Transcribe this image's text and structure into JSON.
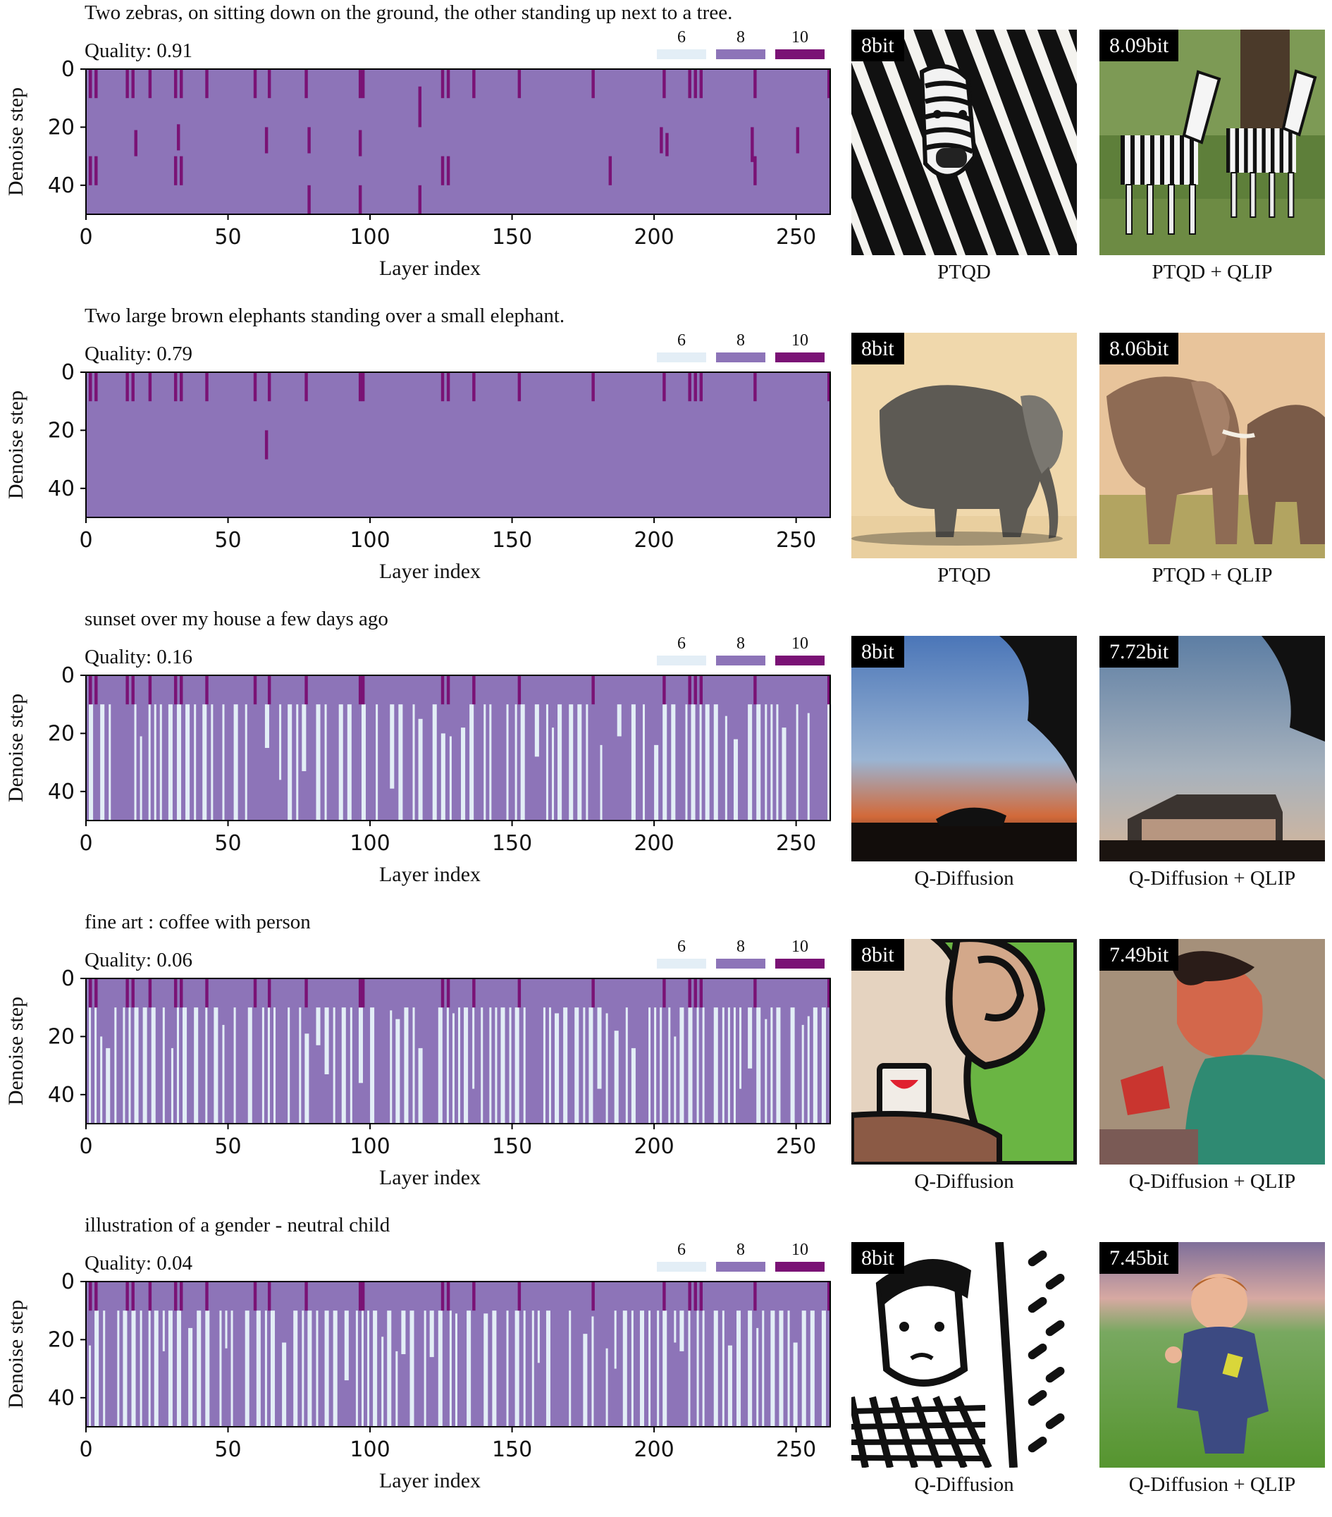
{
  "colors": {
    "bit6": "#e3eef6",
    "bit8": "#8d74b8",
    "bit10": "#7a1275"
  },
  "chart_data": [
    {
      "type": "heatmap",
      "title": "Two zebras, on sitting down on the ground, the other standing up next to a tree.",
      "quality_label": "Quality: 0.91",
      "xlabel": "Layer index",
      "ylabel": "Denoise step",
      "x_ticks": [
        "0",
        "50",
        "100",
        "150",
        "200",
        "250"
      ],
      "y_ticks": [
        "0",
        "20",
        "40"
      ],
      "xlim": [
        0,
        262
      ],
      "ylim": [
        0,
        50
      ],
      "legend": [
        "6",
        "8",
        "10"
      ],
      "base_bits": 8,
      "top_bits10_layers": [
        1,
        3,
        14,
        16,
        22,
        31,
        33,
        42,
        59,
        64,
        77,
        96,
        97,
        125,
        127,
        136,
        152,
        178,
        203,
        212,
        214,
        216,
        235,
        261
      ],
      "bits10_segments": [
        {
          "layer": 17,
          "y0": 21,
          "y1": 30
        },
        {
          "layer": 32,
          "y0": 19,
          "y1": 28
        },
        {
          "layer": 63,
          "y0": 20,
          "y1": 29
        },
        {
          "layer": 78,
          "y0": 20,
          "y1": 29
        },
        {
          "layer": 96,
          "y0": 21,
          "y1": 30
        },
        {
          "layer": 117,
          "y0": 6,
          "y1": 20
        },
        {
          "layer": 202,
          "y0": 20,
          "y1": 29
        },
        {
          "layer": 204,
          "y0": 22,
          "y1": 30
        },
        {
          "layer": 234,
          "y0": 20,
          "y1": 32
        },
        {
          "layer": 250,
          "y0": 20,
          "y1": 29
        },
        {
          "layer": 1,
          "y0": 30,
          "y1": 40
        },
        {
          "layer": 3,
          "y0": 30,
          "y1": 40
        },
        {
          "layer": 31,
          "y0": 30,
          "y1": 40
        },
        {
          "layer": 33,
          "y0": 30,
          "y1": 40
        },
        {
          "layer": 125,
          "y0": 30,
          "y1": 40
        },
        {
          "layer": 127,
          "y0": 30,
          "y1": 40
        },
        {
          "layer": 184,
          "y0": 30,
          "y1": 40
        },
        {
          "layer": 235,
          "y0": 30,
          "y1": 40
        },
        {
          "layer": 78,
          "y0": 40,
          "y1": 50
        },
        {
          "layer": 96,
          "y0": 40,
          "y1": 50
        },
        {
          "layer": 117,
          "y0": 40,
          "y1": 50
        }
      ],
      "bits6_region": null,
      "images": [
        {
          "bits": "8bit",
          "method": "PTQD",
          "subject": "zebra"
        },
        {
          "bits": "8.09bit",
          "method": "PTQD + QLIP",
          "subject": "zebras"
        }
      ]
    },
    {
      "type": "heatmap",
      "title": "Two large brown elephants standing over a small elephant.",
      "quality_label": "Quality: 0.79",
      "xlabel": "Layer index",
      "ylabel": "Denoise step",
      "x_ticks": [
        "0",
        "50",
        "100",
        "150",
        "200",
        "250"
      ],
      "y_ticks": [
        "0",
        "20",
        "40"
      ],
      "xlim": [
        0,
        262
      ],
      "ylim": [
        0,
        50
      ],
      "legend": [
        "6",
        "8",
        "10"
      ],
      "base_bits": 8,
      "top_bits10_layers": [
        1,
        3,
        14,
        16,
        22,
        31,
        33,
        42,
        59,
        64,
        77,
        96,
        97,
        125,
        127,
        136,
        152,
        178,
        203,
        212,
        214,
        216,
        235,
        261
      ],
      "bits10_segments": [
        {
          "layer": 63,
          "y0": 20,
          "y1": 30
        }
      ],
      "bits6_region": null,
      "images": [
        {
          "bits": "8bit",
          "method": "PTQD",
          "subject": "elephant"
        },
        {
          "bits": "8.06bit",
          "method": "PTQD + QLIP",
          "subject": "elephants"
        }
      ]
    },
    {
      "type": "heatmap",
      "title": "sunset over my house a few days ago",
      "quality_label": "Quality: 0.16",
      "xlabel": "Layer index",
      "ylabel": "Denoise step",
      "x_ticks": [
        "0",
        "50",
        "100",
        "150",
        "200",
        "250"
      ],
      "y_ticks": [
        "0",
        "20",
        "40"
      ],
      "xlim": [
        0,
        262
      ],
      "ylim": [
        0,
        50
      ],
      "legend": [
        "6",
        "8",
        "10"
      ],
      "base_bits": 8,
      "top_bits10_layers": [
        1,
        3,
        14,
        16,
        22,
        31,
        33,
        42,
        59,
        64,
        77,
        96,
        97,
        125,
        127,
        136,
        152,
        178,
        203,
        212,
        214,
        216,
        235,
        261
      ],
      "bits10_segments": [],
      "bits6_region": {
        "y_start": 10,
        "density": 0.42,
        "seed": 7
      },
      "images": [
        {
          "bits": "8bit",
          "method": "Q-Diffusion",
          "subject": "sunset"
        },
        {
          "bits": "7.72bit",
          "method": "Q-Diffusion + QLIP",
          "subject": "house"
        }
      ]
    },
    {
      "type": "heatmap",
      "title": "fine art : coffee with person",
      "quality_label": "Quality: 0.06",
      "xlabel": "Layer index",
      "ylabel": "Denoise step",
      "x_ticks": [
        "0",
        "50",
        "100",
        "150",
        "200",
        "250"
      ],
      "y_ticks": [
        "0",
        "20",
        "40"
      ],
      "xlim": [
        0,
        262
      ],
      "ylim": [
        0,
        50
      ],
      "legend": [
        "6",
        "8",
        "10"
      ],
      "base_bits": 8,
      "top_bits10_layers": [
        1,
        3,
        14,
        16,
        22,
        31,
        33,
        42,
        59,
        64,
        77,
        96,
        97,
        125,
        127,
        136,
        152,
        178,
        203,
        212,
        214,
        216,
        235,
        261
      ],
      "bits10_segments": [],
      "bits6_region": {
        "y_start": 10,
        "density": 0.58,
        "seed": 19
      },
      "images": [
        {
          "bits": "8bit",
          "method": "Q-Diffusion",
          "subject": "coffee"
        },
        {
          "bits": "7.49bit",
          "method": "Q-Diffusion + QLIP",
          "subject": "painting"
        }
      ]
    },
    {
      "type": "heatmap",
      "title": "illustration of a gender - neutral child",
      "quality_label": "Quality: 0.04",
      "xlabel": "Layer index",
      "ylabel": "Denoise step",
      "x_ticks": [
        "0",
        "50",
        "100",
        "150",
        "200",
        "250"
      ],
      "y_ticks": [
        "0",
        "20",
        "40"
      ],
      "xlim": [
        0,
        262
      ],
      "ylim": [
        0,
        50
      ],
      "legend": [
        "6",
        "8",
        "10"
      ],
      "base_bits": 8,
      "top_bits10_layers": [
        1,
        3,
        14,
        16,
        22,
        31,
        33,
        42,
        59,
        64,
        77,
        96,
        97,
        125,
        127,
        136,
        152,
        178,
        203,
        212,
        214,
        216,
        235,
        261
      ],
      "bits10_segments": [],
      "bits6_region": {
        "y_start": 10,
        "density": 0.6,
        "seed": 31
      },
      "images": [
        {
          "bits": "8bit",
          "method": "Q-Diffusion",
          "subject": "child-sketch"
        },
        {
          "bits": "7.45bit",
          "method": "Q-Diffusion + QLIP",
          "subject": "child"
        }
      ]
    }
  ]
}
